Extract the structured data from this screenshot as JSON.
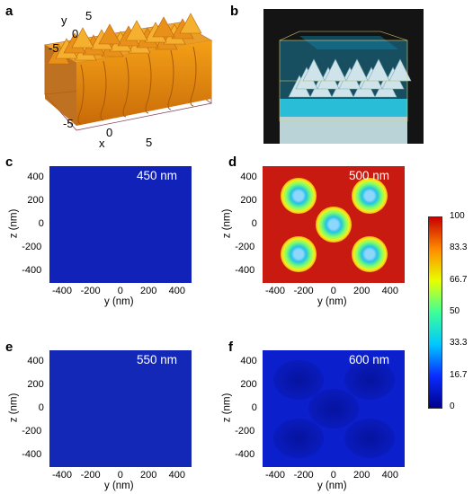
{
  "panels": {
    "a": "a",
    "b": "b",
    "c": "c",
    "d": "d",
    "e": "e",
    "f": "f"
  },
  "panel_a": {
    "y_label": "y",
    "x_label": "x",
    "y_ticks": [
      "5",
      "0",
      "-5"
    ],
    "x_ticks": [
      "-5",
      "0",
      "5"
    ]
  },
  "maps": {
    "c": {
      "wavelength": "450 nm"
    },
    "d": {
      "wavelength": "500 nm"
    },
    "e": {
      "wavelength": "550 nm"
    },
    "f": {
      "wavelength": "600 nm"
    }
  },
  "axes": {
    "xlabel": "y (nm)",
    "ylabel": "z (nm)",
    "x_ticks": [
      "-400",
      "-200",
      "0",
      "200",
      "400"
    ],
    "y_ticks": [
      "400",
      "200",
      "0",
      "-200",
      "-400"
    ]
  },
  "colorbar": {
    "ticks": [
      "100",
      "83.3",
      "66.7",
      "50",
      "33.3",
      "16.7",
      "0"
    ]
  },
  "colors": {
    "low": "#0a1fb0",
    "high": "#c81a10",
    "panel_b_bg": "#111111"
  },
  "chart_data": [
    {
      "type": "heatmap",
      "title": "450 nm",
      "xlabel": "y (nm)",
      "ylabel": "z (nm)",
      "xlim": [
        -500,
        500
      ],
      "ylim": [
        -500,
        500
      ],
      "colorbar_range": [
        0,
        100
      ],
      "dominant_value": 5
    },
    {
      "type": "heatmap",
      "title": "500 nm",
      "xlabel": "y (nm)",
      "ylabel": "z (nm)",
      "xlim": [
        -500,
        500
      ],
      "ylim": [
        -500,
        500
      ],
      "colorbar_range": [
        0,
        100
      ],
      "dominant_value": 95,
      "low_spots": [
        [
          -250,
          250
        ],
        [
          250,
          250
        ],
        [
          -250,
          -250
        ],
        [
          250,
          -250
        ],
        [
          0,
          0
        ]
      ],
      "spot_value": 30
    },
    {
      "type": "heatmap",
      "title": "550 nm",
      "xlabel": "y (nm)",
      "ylabel": "z (nm)",
      "xlim": [
        -500,
        500
      ],
      "ylim": [
        -500,
        500
      ],
      "colorbar_range": [
        0,
        100
      ],
      "dominant_value": 5
    },
    {
      "type": "heatmap",
      "title": "600 nm",
      "xlabel": "y (nm)",
      "ylabel": "z (nm)",
      "xlim": [
        -500,
        500
      ],
      "ylim": [
        -500,
        500
      ],
      "colorbar_range": [
        0,
        100
      ],
      "dominant_value": 3
    }
  ]
}
